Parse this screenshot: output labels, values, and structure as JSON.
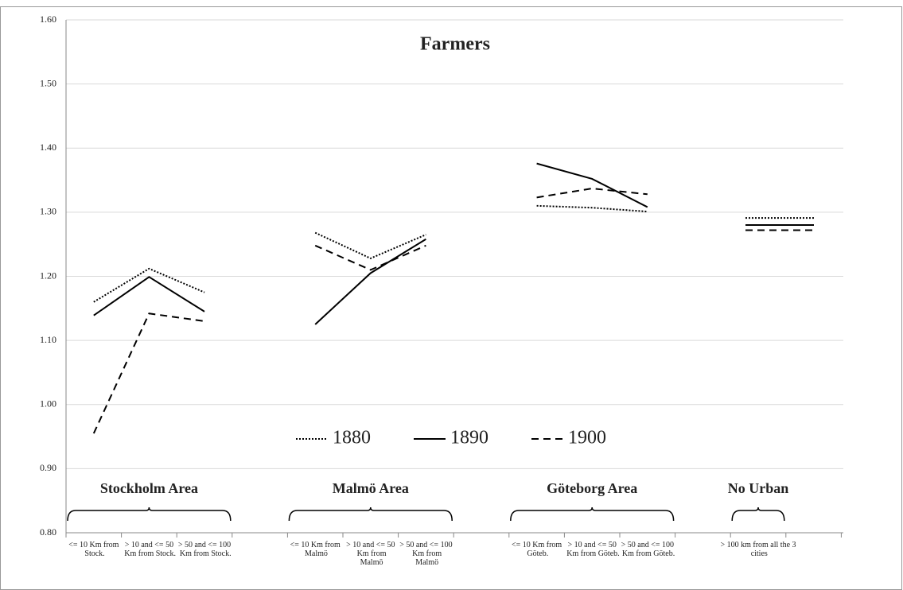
{
  "chart_data": {
    "type": "line",
    "title": "Farmers",
    "categories": [
      "<= 10 Km from Stock.",
      "> 10 and <= 50 Km from Stock.",
      "> 50 and <= 100 Km from Stock.",
      null,
      "<= 10 Km from Malmö",
      "> 10 and <= 50 Km from Malmö",
      "> 50 and <= 100 Km from Malmö",
      null,
      "<= 10 Km from Göteb.",
      "> 10 and <= 50 Km from Göteb.",
      "> 50 and <= 100 Km from Göteb.",
      null,
      "> 100 km from all the 3 cities"
    ],
    "groups": [
      "Stockholm Area",
      "Malmö Area",
      "Göteborg Area",
      "No Urban"
    ],
    "series": [
      {
        "name": "1880",
        "color": "#000000",
        "dash": "dotted",
        "values": [
          1.16,
          1.212,
          1.175,
          null,
          1.268,
          1.228,
          1.265,
          null,
          1.31,
          1.307,
          1.301,
          null,
          1.291
        ]
      },
      {
        "name": "1890",
        "color": "#000000",
        "dash": "solid",
        "values": [
          1.139,
          1.199,
          1.145,
          null,
          1.125,
          1.205,
          1.258,
          null,
          1.376,
          1.352,
          1.308,
          null,
          1.28
        ]
      },
      {
        "name": "1900",
        "color": "#000000",
        "dash": "dashed",
        "values": [
          0.955,
          1.142,
          1.13,
          null,
          1.248,
          1.21,
          1.248,
          null,
          1.323,
          1.337,
          1.328,
          null,
          1.272
        ]
      }
    ],
    "ylim": [
      0.8,
      1.6
    ],
    "yticks": [
      {
        "value": 0.8,
        "label": "0.80"
      },
      {
        "value": 0.9,
        "label": "0.90"
      },
      {
        "value": 1.0,
        "label": "1.00"
      },
      {
        "value": 1.1,
        "label": "1.10"
      },
      {
        "value": 1.2,
        "label": "1.20"
      },
      {
        "value": 1.3,
        "label": "1.30"
      },
      {
        "value": 1.4,
        "label": "1.40"
      },
      {
        "value": 1.5,
        "label": "1.50"
      },
      {
        "value": 1.6,
        "label": "1.60"
      }
    ],
    "grid": true,
    "legend": "center"
  }
}
